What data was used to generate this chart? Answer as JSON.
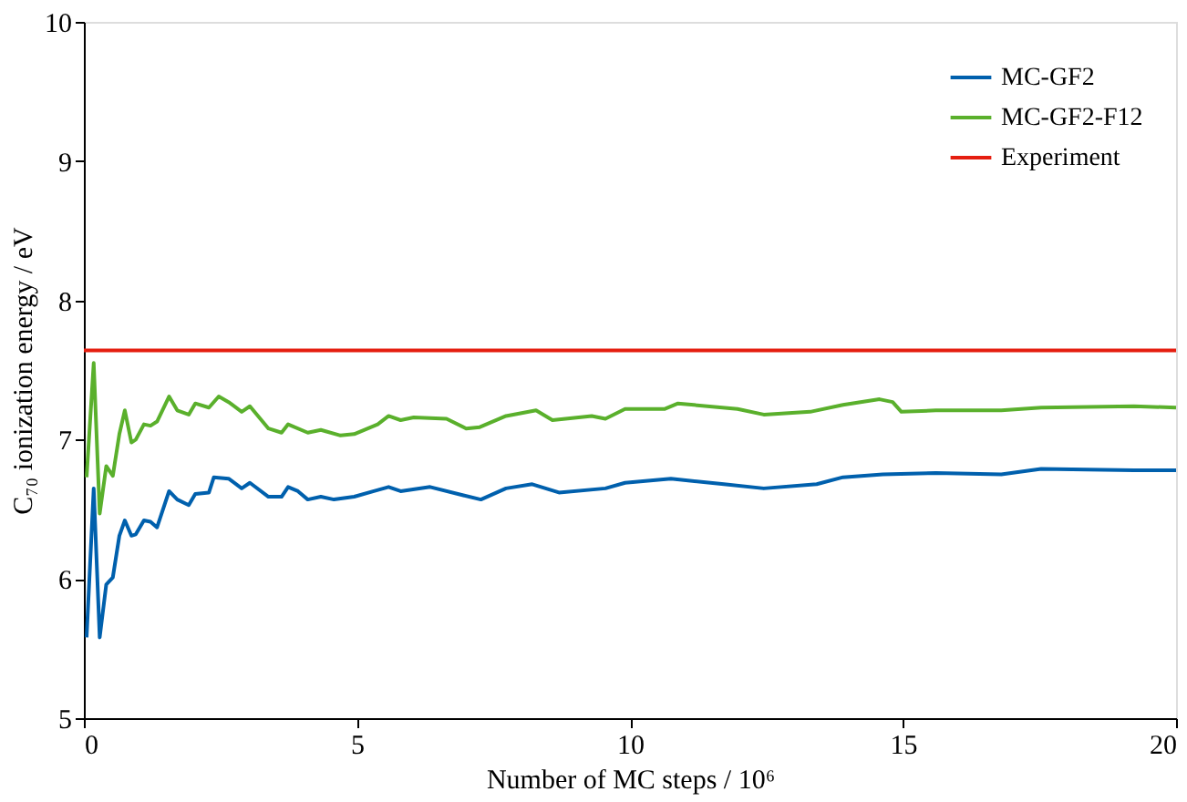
{
  "chart_data": {
    "type": "line",
    "xlabel": "Number of MC steps / 10⁶",
    "ylabel": "C₇₀ ionization energy / eV",
    "xlim": [
      0,
      20
    ],
    "xticks": [
      0,
      5,
      10,
      15,
      20
    ],
    "ylim": [
      5,
      10
    ],
    "yticks": [
      5,
      6,
      7,
      8,
      9,
      10
    ],
    "grid": false,
    "legend": "top right",
    "marker": "none",
    "line_style": "solid",
    "series": [
      {
        "name": "MC-GF2",
        "color": "#0060ad",
        "x": [
          0.05,
          0.18,
          0.29,
          0.41,
          0.53,
          0.65,
          0.75,
          0.87,
          0.95,
          1.1,
          1.22,
          1.34,
          1.56,
          1.71,
          1.92,
          2.04,
          2.29,
          2.38,
          2.65,
          2.89,
          3.04,
          3.38,
          3.62,
          3.74,
          3.92,
          4.1,
          4.34,
          4.58,
          4.95,
          5.31,
          5.58,
          5.8,
          6.34,
          6.95,
          7.27,
          7.73,
          8.21,
          8.7,
          9.55,
          9.91,
          10.75,
          11.72,
          12.45,
          13.42,
          13.9,
          14.63,
          15.6,
          16.8,
          17.53,
          19.23,
          20
        ],
        "values": [
          5.58,
          6.65,
          5.58,
          5.96,
          6.01,
          6.31,
          6.42,
          6.31,
          6.32,
          6.42,
          6.41,
          6.37,
          6.63,
          6.57,
          6.53,
          6.61,
          6.62,
          6.73,
          6.72,
          6.65,
          6.69,
          6.59,
          6.59,
          6.66,
          6.63,
          6.57,
          6.59,
          6.57,
          6.59,
          6.63,
          6.66,
          6.63,
          6.66,
          6.6,
          6.57,
          6.65,
          6.68,
          6.62,
          6.65,
          6.69,
          6.72,
          6.68,
          6.65,
          6.68,
          6.73,
          6.75,
          6.76,
          6.75,
          6.79,
          6.78,
          6.78
        ]
      },
      {
        "name": "MC-GF2-F12",
        "color": "#5ab02c",
        "x": [
          0.05,
          0.18,
          0.29,
          0.41,
          0.53,
          0.65,
          0.75,
          0.87,
          0.95,
          1.1,
          1.22,
          1.34,
          1.56,
          1.71,
          1.92,
          2.04,
          2.29,
          2.47,
          2.65,
          2.89,
          3.04,
          3.38,
          3.62,
          3.74,
          4.1,
          4.34,
          4.7,
          4.95,
          5.38,
          5.58,
          5.8,
          6.04,
          6.64,
          7.0,
          7.25,
          7.73,
          8.28,
          8.58,
          9.3,
          9.55,
          9.91,
          10.63,
          10.88,
          11.97,
          12.45,
          13.3,
          13.9,
          14.57,
          14.81,
          14.97,
          15.6,
          16.8,
          17.53,
          19.23,
          20
        ],
        "values": [
          6.73,
          7.55,
          6.47,
          6.81,
          6.74,
          7.04,
          7.21,
          6.98,
          7.0,
          7.11,
          7.1,
          7.13,
          7.31,
          7.21,
          7.18,
          7.26,
          7.23,
          7.31,
          7.27,
          7.2,
          7.24,
          7.08,
          7.05,
          7.11,
          7.05,
          7.07,
          7.03,
          7.04,
          7.11,
          7.17,
          7.14,
          7.16,
          7.15,
          7.08,
          7.09,
          7.17,
          7.21,
          7.14,
          7.17,
          7.15,
          7.22,
          7.22,
          7.26,
          7.22,
          7.18,
          7.2,
          7.25,
          7.29,
          7.27,
          7.2,
          7.21,
          7.21,
          7.23,
          7.24,
          7.23
        ]
      },
      {
        "name": "Experiment",
        "color": "#e51e10",
        "x": [
          0,
          20
        ],
        "values": [
          7.64,
          7.64
        ]
      }
    ]
  }
}
